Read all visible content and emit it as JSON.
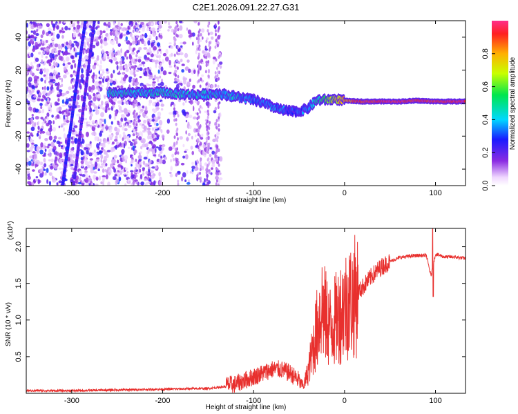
{
  "title": "C2E1.2026.091.22.27.G31",
  "chart_data": [
    {
      "type": "heatmap",
      "xlabel": "Height of straight line (km)",
      "ylabel": "Frequency (Hz)",
      "xlim": [
        -350,
        133
      ],
      "ylim": [
        -50,
        50
      ],
      "xticks": [
        -300,
        -200,
        -100,
        0,
        100
      ],
      "yticks": [
        -40,
        -20,
        0,
        20,
        40
      ],
      "colorbar": {
        "label": "Normalized spectral amplitude",
        "range": [
          0,
          1
        ],
        "ticks": [
          "0.0",
          "0.2",
          "0.4",
          "0.6",
          "0.8"
        ],
        "tick_values": [
          0,
          0.2,
          0.4,
          0.6,
          0.8
        ]
      },
      "ridge": {
        "x": [
          -260,
          -240,
          -220,
          -200,
          -180,
          -160,
          -140,
          -120,
          -100,
          -90,
          -80,
          -70,
          -60,
          -50,
          -40,
          -30,
          -20,
          -10,
          0,
          20,
          40,
          60,
          80,
          100,
          133
        ],
        "freq": [
          6.5,
          6,
          6,
          6.5,
          5.5,
          5,
          6,
          4,
          2,
          0,
          -2,
          -4,
          -5,
          -5,
          -3,
          2,
          2,
          2.5,
          1.5,
          1,
          1,
          1,
          1.5,
          1,
          1
        ],
        "amplitude": [
          0.45,
          0.45,
          0.4,
          0.45,
          0.4,
          0.4,
          0.4,
          0.4,
          0.35,
          0.35,
          0.35,
          0.35,
          0.3,
          0.3,
          0.35,
          0.45,
          0.6,
          0.7,
          0.8,
          0.92,
          0.95,
          0.95,
          0.95,
          0.95,
          0.95
        ]
      },
      "streaks": [
        {
          "x_at_minus50": -310,
          "x_at_plus50": -285,
          "amplitude": 0.25
        },
        {
          "x_at_minus50": -298,
          "x_at_plus50": -275,
          "amplitude": 0.2
        }
      ]
    },
    {
      "type": "line",
      "xlabel": "Height of straight line (km)",
      "ylabel": "SNR (10 * v/v)",
      "y_multiplier": "(x10⁴)",
      "xlim": [
        -350,
        133
      ],
      "ylim": [
        0,
        2.25
      ],
      "xticks": [
        -300,
        -200,
        -100,
        0,
        100
      ],
      "yticks": [
        0.5,
        1.0,
        1.5,
        2.0
      ],
      "ytick_labels": [
        "0.5",
        "1.0",
        "1.5",
        "2.0"
      ],
      "color": "#e8302e",
      "series": [
        {
          "name": "SNR",
          "x": [
            -350,
            -300,
            -250,
            -200,
            -150,
            -120,
            -100,
            -90,
            -80,
            -70,
            -60,
            -50,
            -45,
            -40,
            -35,
            -30,
            -25,
            -20,
            -15,
            -10,
            -5,
            0,
            10,
            20,
            30,
            40,
            50,
            60,
            70,
            80,
            90,
            95,
            100,
            110,
            120,
            133
          ],
          "values": [
            0.03,
            0.03,
            0.04,
            0.05,
            0.06,
            0.1,
            0.2,
            0.25,
            0.3,
            0.3,
            0.25,
            0.15,
            0.1,
            0.3,
            0.6,
            0.9,
            1.2,
            1.0,
            0.9,
            1.0,
            1.1,
            1.2,
            1.3,
            1.45,
            1.6,
            1.72,
            1.8,
            1.85,
            1.87,
            1.88,
            1.88,
            1.6,
            1.9,
            1.86,
            1.86,
            1.84
          ]
        }
      ]
    }
  ]
}
